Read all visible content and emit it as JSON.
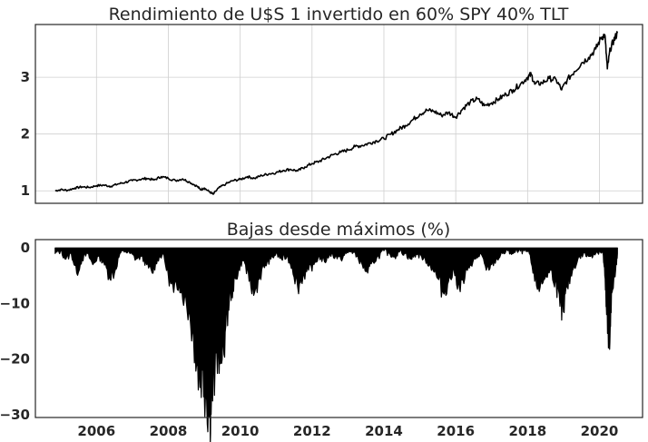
{
  "chart_data": [
    {
      "type": "line",
      "title": "Rendimiento de U$S 1 invertido en 60% SPY 40% TLT",
      "xlabel": "",
      "ylabel": "",
      "xlim": [
        2004.3,
        2021.2
      ],
      "ylim": [
        0.78,
        3.93
      ],
      "yticks": [
        "1",
        "2",
        "3"
      ],
      "ytick_values": [
        1,
        2,
        3
      ],
      "xtick_values": [
        2006,
        2008,
        2010,
        2012,
        2014,
        2016,
        2018,
        2020
      ],
      "grid": true,
      "legend": "none",
      "line_color": "#000000",
      "series": [
        {
          "x": [
            2004.85,
            2005.0,
            2005.2,
            2005.4,
            2005.6,
            2005.8,
            2006.0,
            2006.2,
            2006.4,
            2006.6,
            2006.8,
            2007.0,
            2007.2,
            2007.4,
            2007.6,
            2007.8,
            2008.0,
            2008.2,
            2008.4,
            2008.6,
            2008.8,
            2008.9,
            2009.0,
            2009.15,
            2009.25,
            2009.4,
            2009.6,
            2009.8,
            2010.0,
            2010.2,
            2010.4,
            2010.6,
            2010.8,
            2011.0,
            2011.2,
            2011.4,
            2011.6,
            2011.8,
            2012.0,
            2012.2,
            2012.4,
            2012.6,
            2012.8,
            2013.0,
            2013.2,
            2013.4,
            2013.6,
            2013.8,
            2014.0,
            2014.2,
            2014.4,
            2014.6,
            2014.8,
            2015.0,
            2015.2,
            2015.4,
            2015.6,
            2015.8,
            2016.0,
            2016.2,
            2016.4,
            2016.6,
            2016.8,
            2017.0,
            2017.2,
            2017.4,
            2017.6,
            2017.8,
            2018.0,
            2018.1,
            2018.2,
            2018.4,
            2018.6,
            2018.8,
            2018.95,
            2019.1,
            2019.3,
            2019.5,
            2019.7,
            2019.9,
            2020.05,
            2020.15,
            2020.22,
            2020.3,
            2020.4,
            2020.5
          ],
          "y": [
            1.0,
            1.02,
            1.01,
            1.05,
            1.07,
            1.06,
            1.09,
            1.1,
            1.08,
            1.12,
            1.15,
            1.18,
            1.2,
            1.22,
            1.19,
            1.25,
            1.22,
            1.18,
            1.21,
            1.15,
            1.08,
            1.02,
            1.05,
            0.98,
            0.94,
            1.05,
            1.12,
            1.18,
            1.2,
            1.25,
            1.22,
            1.27,
            1.3,
            1.32,
            1.36,
            1.38,
            1.35,
            1.42,
            1.48,
            1.52,
            1.58,
            1.64,
            1.68,
            1.72,
            1.78,
            1.8,
            1.84,
            1.88,
            1.92,
            2.0,
            2.08,
            2.15,
            2.25,
            2.35,
            2.42,
            2.4,
            2.33,
            2.38,
            2.3,
            2.45,
            2.56,
            2.62,
            2.5,
            2.55,
            2.62,
            2.7,
            2.78,
            2.88,
            3.0,
            3.05,
            2.88,
            2.9,
            2.98,
            2.95,
            2.78,
            2.95,
            3.1,
            3.25,
            3.35,
            3.5,
            3.7,
            3.75,
            3.15,
            3.5,
            3.65,
            3.78
          ]
        }
      ]
    },
    {
      "type": "area",
      "title": "Bajas desde máximos (%)",
      "xlabel": "",
      "ylabel": "",
      "xlim": [
        2004.3,
        2021.2
      ],
      "ylim": [
        -30.5,
        1.5
      ],
      "yticks": [
        "0",
        "−10",
        "−20",
        "−30"
      ],
      "ytick_values": [
        0,
        -10,
        -20,
        -30
      ],
      "xticks": [
        "2006",
        "2008",
        "2010",
        "2012",
        "2014",
        "2016",
        "2018",
        "2020"
      ],
      "xtick_values": [
        2006,
        2008,
        2010,
        2012,
        2014,
        2016,
        2018,
        2020
      ],
      "grid": false,
      "legend": "none",
      "fill_color": "#000000",
      "series": [
        {
          "x": [
            2004.85,
            2005.0,
            2005.15,
            2005.3,
            2005.45,
            2005.6,
            2005.75,
            2005.9,
            2006.05,
            2006.2,
            2006.35,
            2006.5,
            2006.65,
            2006.8,
            2006.95,
            2007.1,
            2007.25,
            2007.4,
            2007.55,
            2007.7,
            2007.85,
            2008.0,
            2008.15,
            2008.3,
            2008.45,
            2008.6,
            2008.75,
            2008.85,
            2008.95,
            2009.05,
            2009.15,
            2009.2,
            2009.3,
            2009.4,
            2009.5,
            2009.6,
            2009.7,
            2009.8,
            2009.9,
            2010.0,
            2010.1,
            2010.25,
            2010.4,
            2010.55,
            2010.7,
            2010.85,
            2011.0,
            2011.15,
            2011.3,
            2011.45,
            2011.6,
            2011.75,
            2011.9,
            2012.05,
            2012.2,
            2012.35,
            2012.5,
            2012.65,
            2012.8,
            2012.95,
            2013.1,
            2013.25,
            2013.4,
            2013.55,
            2013.7,
            2013.85,
            2014.0,
            2014.15,
            2014.3,
            2014.45,
            2014.6,
            2014.75,
            2014.9,
            2015.05,
            2015.2,
            2015.35,
            2015.5,
            2015.65,
            2015.8,
            2015.95,
            2016.1,
            2016.25,
            2016.4,
            2016.55,
            2016.7,
            2016.85,
            2017.0,
            2017.15,
            2017.3,
            2017.45,
            2017.6,
            2017.75,
            2017.9,
            2018.05,
            2018.2,
            2018.35,
            2018.5,
            2018.65,
            2018.8,
            2018.9,
            2019.0,
            2019.1,
            2019.25,
            2019.4,
            2019.55,
            2019.7,
            2019.85,
            2020.0,
            2020.1,
            2020.15,
            2020.2,
            2020.25,
            2020.3,
            2020.35,
            2020.45,
            2020.5
          ],
          "y": [
            -1.0,
            -0.5,
            -2.0,
            -1.0,
            -4.5,
            -2.0,
            -1.0,
            -3.0,
            -1.5,
            -2.5,
            -5.0,
            -4.5,
            -1.0,
            -0.5,
            -1.0,
            -2.0,
            -1.5,
            -3.0,
            -4.5,
            -2.0,
            -1.0,
            -5.0,
            -8.0,
            -6.0,
            -9.0,
            -12.0,
            -18.0,
            -23.0,
            -22.0,
            -26.0,
            -29.0,
            -27.0,
            -22.0,
            -18.0,
            -20.0,
            -14.0,
            -9.0,
            -7.0,
            -5.0,
            -3.0,
            -2.0,
            -6.0,
            -8.0,
            -5.0,
            -3.0,
            -2.0,
            -1.0,
            -2.0,
            -1.5,
            -3.5,
            -7.0,
            -5.0,
            -4.0,
            -3.0,
            -1.5,
            -2.5,
            -1.0,
            -1.5,
            -2.0,
            -1.0,
            -0.5,
            -1.5,
            -3.0,
            -4.5,
            -2.5,
            -1.5,
            -0.5,
            -1.0,
            -1.5,
            -0.5,
            -1.0,
            -2.0,
            -1.0,
            -1.5,
            -2.5,
            -3.5,
            -5.5,
            -8.0,
            -6.0,
            -4.0,
            -7.0,
            -5.5,
            -3.0,
            -2.0,
            -1.0,
            -4.0,
            -3.0,
            -2.0,
            -1.0,
            -0.5,
            -1.0,
            -0.5,
            -0.5,
            -1.0,
            -6.0,
            -7.0,
            -5.0,
            -4.0,
            -6.5,
            -10.5,
            -11.5,
            -7.0,
            -4.0,
            -2.0,
            -1.0,
            -1.5,
            -1.0,
            -0.5,
            -1.0,
            -5.0,
            -12.0,
            -18.0,
            -14.0,
            -8.0,
            -4.0,
            -1.0
          ]
        }
      ]
    }
  ]
}
